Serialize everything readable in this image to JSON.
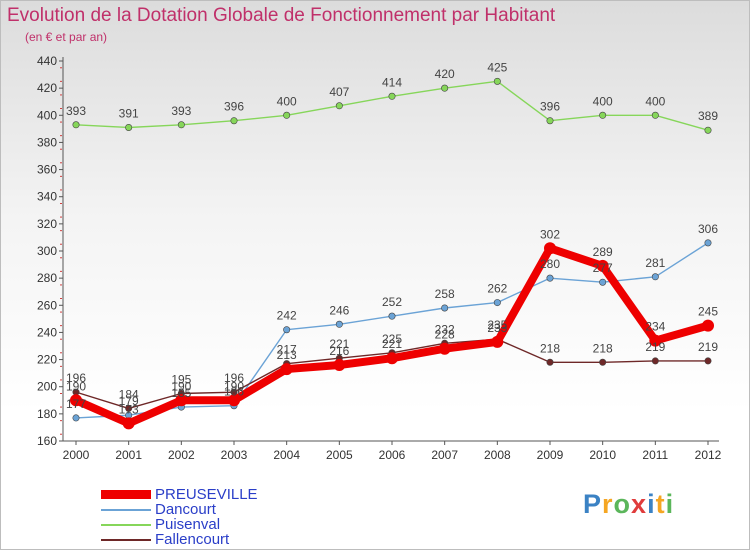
{
  "chart_data": {
    "type": "line",
    "title": "Evolution de la Dotation Globale de Fonctionnement par Habitant",
    "subtitle": "(en € et par an)",
    "xlabel": "",
    "ylabel": "",
    "ylim": [
      160,
      440
    ],
    "yticks": [
      160,
      180,
      200,
      220,
      240,
      260,
      280,
      300,
      320,
      340,
      360,
      380,
      400,
      420,
      440
    ],
    "categories": [
      "2000",
      "2001",
      "2002",
      "2003",
      "2004",
      "2005",
      "2006",
      "2007",
      "2008",
      "2009",
      "2010",
      "2011",
      "2012"
    ],
    "grid": false,
    "legend_position": "bottom-left",
    "series": [
      {
        "name": "Puisenval",
        "color": "#86d65a",
        "values": [
          393,
          391,
          393,
          396,
          400,
          407,
          414,
          420,
          425,
          396,
          400,
          400,
          389
        ]
      },
      {
        "name": "Dancourt",
        "color": "#6ba3d6",
        "values": [
          177,
          179,
          185,
          186,
          242,
          246,
          252,
          258,
          262,
          280,
          277,
          281,
          306
        ]
      },
      {
        "name": "Fallencourt",
        "color": "#6e2828",
        "values": [
          196,
          184,
          195,
          196,
          217,
          221,
          225,
          232,
          235,
          218,
          218,
          219,
          219
        ]
      },
      {
        "name": "PREUSEVILLE",
        "color": "#ee0000",
        "values": [
          190,
          173,
          190,
          190,
          213,
          216,
          221,
          228,
          233,
          302,
          289,
          234,
          245
        ]
      }
    ],
    "labels": [
      {
        "value": "393",
        "series": "Puisenval",
        "index": 0
      },
      {
        "value": "391",
        "series": "Puisenval",
        "index": 1
      },
      {
        "value": "393",
        "series": "Puisenval",
        "index": 2
      },
      {
        "value": "396",
        "series": "Puisenval",
        "index": 3
      },
      {
        "value": "400",
        "series": "Puisenval",
        "index": 4
      },
      {
        "value": "407",
        "series": "Puisenval",
        "index": 5
      },
      {
        "value": "414",
        "series": "Puisenval",
        "index": 6
      },
      {
        "value": "420",
        "series": "Puisenval",
        "index": 7
      },
      {
        "value": "425",
        "series": "Puisenval",
        "index": 8
      },
      {
        "value": "396",
        "series": "Puisenval",
        "index": 9
      },
      {
        "value": "400",
        "series": "Puisenval",
        "index": 10
      },
      {
        "value": "400",
        "series": "Puisenval",
        "index": 11
      },
      {
        "value": "389",
        "series": "Puisenval",
        "index": 12
      },
      {
        "value": "242",
        "series": "Dancourt",
        "index": 4
      },
      {
        "value": "246",
        "series": "Dancourt",
        "index": 5
      },
      {
        "value": "252",
        "series": "Dancourt",
        "index": 6
      },
      {
        "value": "258",
        "series": "Dancourt",
        "index": 7
      },
      {
        "value": "262",
        "series": "Dancourt",
        "index": 8
      },
      {
        "value": "280",
        "series": "Dancourt",
        "index": 9
      },
      {
        "value": "277",
        "series": "Dancourt",
        "index": 10
      },
      {
        "value": "281",
        "series": "Dancourt",
        "index": 11
      },
      {
        "value": "306",
        "series": "Dancourt",
        "index": 12
      },
      {
        "value": "196",
        "series": "Fallencourt",
        "index": 0
      },
      {
        "value": "184",
        "series": "Fallencourt",
        "index": 1
      },
      {
        "value": "195",
        "series": "Fallencourt",
        "index": 2
      },
      {
        "value": "196",
        "series": "Fallencourt",
        "index": 3
      },
      {
        "value": "217",
        "series": "Fallencourt",
        "index": 4
      },
      {
        "value": "221",
        "series": "Fallencourt",
        "index": 5
      },
      {
        "value": "225",
        "series": "Fallencourt",
        "index": 6
      },
      {
        "value": "232",
        "series": "Fallencourt",
        "index": 7
      },
      {
        "value": "235",
        "series": "Fallencourt",
        "index": 8
      },
      {
        "value": "218",
        "series": "Fallencourt",
        "index": 9
      },
      {
        "value": "218",
        "series": "Fallencourt",
        "index": 10
      },
      {
        "value": "219",
        "series": "Fallencourt",
        "index": 11
      },
      {
        "value": "219",
        "series": "Fallencourt",
        "index": 12
      },
      {
        "value": "190",
        "series": "PREUSEVILLE",
        "index": 0
      },
      {
        "value": "177",
        "series": "Dancourt",
        "index": 0
      },
      {
        "value": "179",
        "series": "Dancourt",
        "index": 1
      },
      {
        "value": "173",
        "series": "PREUSEVILLE",
        "index": 1
      },
      {
        "value": "190",
        "series": "PREUSEVILLE",
        "index": 2
      },
      {
        "value": "185",
        "series": "Dancourt",
        "index": 2
      },
      {
        "value": "190",
        "series": "PREUSEVILLE",
        "index": 3
      },
      {
        "value": "186",
        "series": "Dancourt",
        "index": 3
      },
      {
        "value": "213",
        "series": "PREUSEVILLE",
        "index": 4
      },
      {
        "value": "216",
        "series": "PREUSEVILLE",
        "index": 5
      },
      {
        "value": "221",
        "series": "PREUSEVILLE",
        "index": 6
      },
      {
        "value": "228",
        "series": "PREUSEVILLE",
        "index": 7
      },
      {
        "value": "233",
        "series": "PREUSEVILLE",
        "index": 8
      },
      {
        "value": "302",
        "series": "PREUSEVILLE",
        "index": 9
      },
      {
        "value": "289",
        "series": "PREUSEVILLE",
        "index": 10
      },
      {
        "value": "234",
        "series": "PREUSEVILLE",
        "index": 11
      },
      {
        "value": "245",
        "series": "PREUSEVILLE",
        "index": 12
      }
    ]
  },
  "legend": {
    "items": [
      {
        "name": "PREUSEVILLE",
        "color": "#ee0000"
      },
      {
        "name": "Dancourt",
        "color": "#6ba3d6"
      },
      {
        "name": "Puisenval",
        "color": "#86d65a"
      },
      {
        "name": "Fallencourt",
        "color": "#6e2828"
      }
    ]
  },
  "logo": {
    "letters": [
      "P",
      "r",
      "o",
      "x",
      "i",
      "t",
      "i"
    ],
    "colors": [
      "#3b82c4",
      "#f5a623",
      "#5bb65b",
      "#e03c3c",
      "#3b82c4",
      "#f5a623",
      "#5bb65b"
    ]
  }
}
